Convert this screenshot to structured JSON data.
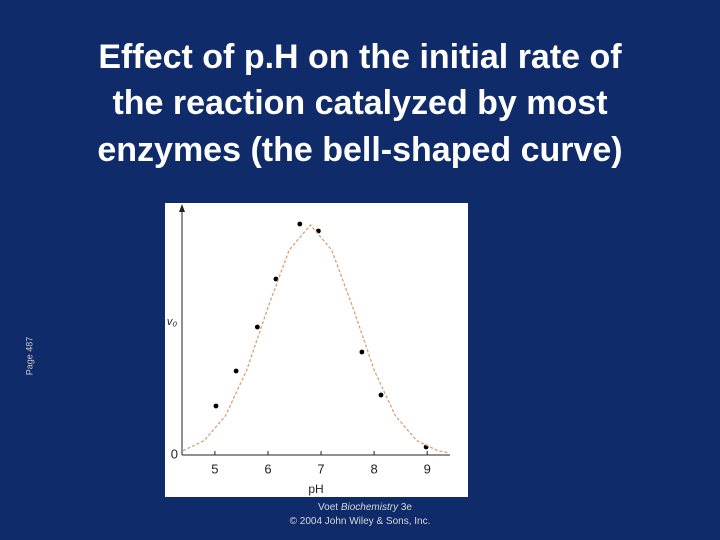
{
  "chart_data": {
    "type": "scatter",
    "title": [
      "Effect of p.H on the initial rate of",
      "the reaction catalyzed by most",
      "enzymes (the bell-shaped curve)"
    ],
    "x_label": "pH",
    "y_label": "v₀",
    "xlim": [
      4.38,
      9.43
    ],
    "xticks": [
      5,
      6,
      7,
      8,
      9
    ],
    "ylim": [
      0,
      1
    ],
    "yticks": [
      0
    ],
    "series": [
      {
        "color": "#000000",
        "x": [
          5.02,
          5.4,
          5.8,
          6.15,
          6.6,
          6.95,
          7.77,
          8.13,
          8.98
        ],
        "values": [
          0.196,
          0.336,
          0.512,
          0.704,
          0.924,
          0.896,
          0.412,
          0.24,
          0.032
        ]
      },
      {
        "type": "line",
        "color": "#d9a070",
        "x": [
          4.4,
          4.8,
          5.2,
          5.6,
          6.0,
          6.4,
          6.8,
          7.2,
          7.6,
          8.0,
          8.4,
          8.8,
          9.2,
          9.4
        ],
        "values": [
          0.017,
          0.058,
          0.157,
          0.34,
          0.59,
          0.82,
          0.92,
          0.82,
          0.59,
          0.34,
          0.157,
          0.058,
          0.017,
          0.009
        ]
      }
    ]
  },
  "page_label": "Page 487",
  "credit": {
    "line1": [
      "Voet ",
      "Biochemistry",
      " 3e"
    ],
    "line2": "© 2004 John Wiley & Sons, Inc."
  }
}
